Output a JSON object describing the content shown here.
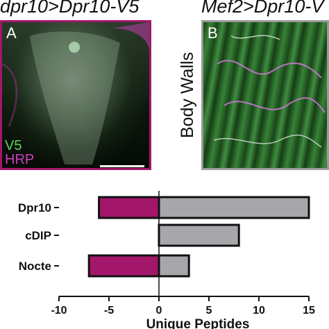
{
  "panels": {
    "a": {
      "title": "dpr10>Dpr10-V5",
      "letter": "A",
      "legend": [
        {
          "label": "V5",
          "color": "#5fd35f"
        },
        {
          "label": "HRP",
          "color": "#d23fbf"
        }
      ],
      "border_color": "#a3176b"
    },
    "b": {
      "title": "Mef2>Dpr10-V",
      "letter": "B",
      "side_label": "Body Walls",
      "border_color": "#9a9a9a"
    }
  },
  "chart_data": {
    "type": "bar",
    "orientation": "horizontal",
    "categories": [
      "Dpr10",
      "cDIP",
      "Nocte"
    ],
    "series": [
      {
        "values": [
          -6,
          0,
          -7
        ],
        "color": "#a3176b"
      },
      {
        "values": [
          15,
          8,
          3
        ],
        "color": "#a7a7ab"
      }
    ],
    "xlabel": "Unique Peptides",
    "xlim": [
      -10,
      15
    ],
    "xticks": [
      -10,
      -5,
      0,
      5,
      10,
      15
    ],
    "xtick_labels": [
      "-10",
      "-5",
      "0",
      "5",
      "10",
      "15"
    ],
    "grid": false
  }
}
